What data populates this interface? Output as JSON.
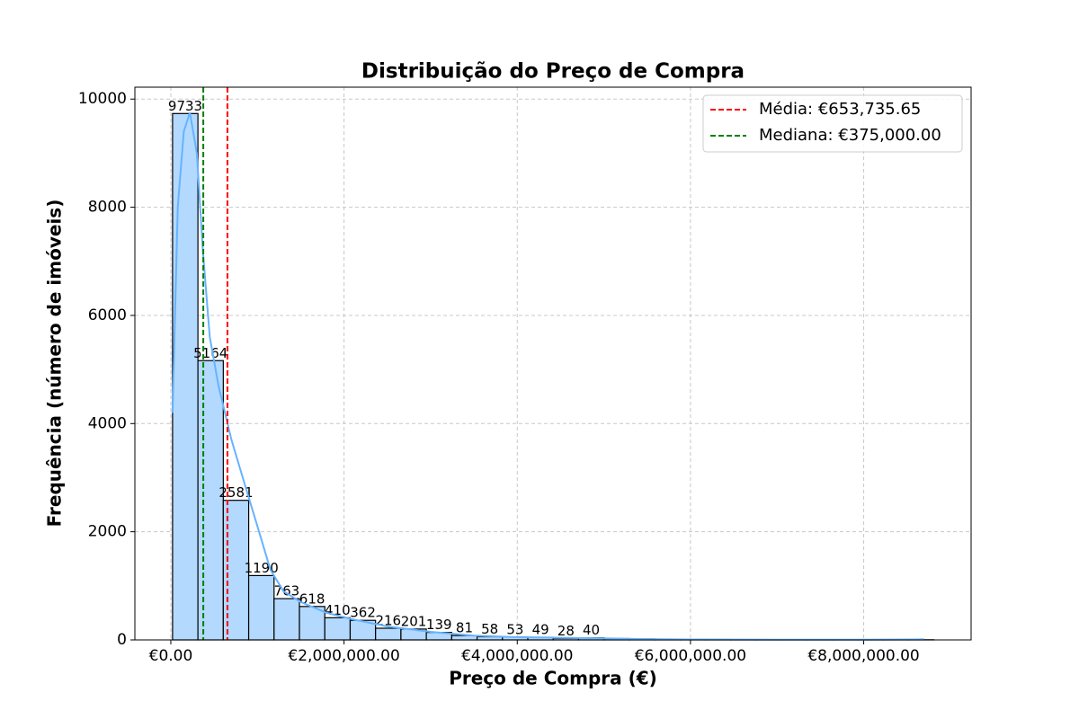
{
  "chart_data": {
    "type": "histogram",
    "title": "Distribuição do Preço de Compra",
    "xlabel": "Preço de Compra (€)",
    "ylabel": "Frequência (número de imóveis)",
    "bins": [
      20000,
      313000,
      606000,
      899000,
      1192000,
      1485000,
      1778000,
      2071000,
      2364000,
      2657000,
      2950000,
      3243000,
      3536000,
      3829000,
      4122000,
      4415000,
      4708000,
      5001000,
      5294000,
      5587000,
      5880000,
      6173000,
      6466000,
      6759000,
      7052000,
      7345000,
      7638000,
      7931000,
      8224000,
      8517000,
      8810000
    ],
    "values": [
      9733,
      5164,
      2581,
      1190,
      763,
      618,
      410,
      362,
      216,
      201,
      139,
      81,
      58,
      53,
      49,
      28,
      40,
      25,
      18,
      12,
      10,
      8,
      6,
      5,
      4,
      3,
      2,
      2,
      1,
      3
    ],
    "value_labels": [
      "9733",
      "5164",
      "2581",
      "1190",
      "763",
      "618",
      "410",
      "362",
      "216",
      "201",
      "139",
      "81",
      "58",
      "53",
      "49",
      "28",
      "40",
      null,
      null,
      null,
      null,
      null,
      null,
      null,
      null,
      null,
      null,
      null,
      null,
      null
    ],
    "color": "#b3d9ff",
    "edgecolor": "#000000",
    "kde": {
      "color": "#66b3ff",
      "x": [
        20000,
        80000,
        150000,
        220000,
        300000,
        370000,
        450000,
        550000,
        700000,
        850000,
        1000000,
        1150000,
        1300000,
        1500000,
        1800000,
        2100000,
        2500000,
        3000000,
        3500000,
        4000000,
        4500000,
        5000000,
        5500000,
        6000000,
        7000000,
        8000000,
        8700000
      ],
      "y": [
        4200,
        8000,
        9400,
        9750,
        9000,
        7200,
        5600,
        4700,
        3700,
        2900,
        2100,
        1300,
        900,
        700,
        500,
        380,
        250,
        150,
        80,
        50,
        40,
        30,
        15,
        8,
        5,
        5,
        10
      ]
    },
    "vlines": [
      {
        "value": 653735.65,
        "label": "Média: €653,735.65",
        "color": "#ff0000"
      },
      {
        "value": 375000,
        "label": "Mediana: €375,000.00",
        "color": "#008000"
      }
    ],
    "xlim": [
      -415000,
      9240000
    ],
    "ylim": [
      0,
      10220
    ],
    "xticks": [
      {
        "value": 0,
        "label": "€0.00"
      },
      {
        "value": 2000000,
        "label": "€2,000,000.00"
      },
      {
        "value": 4000000,
        "label": "€4,000,000.00"
      },
      {
        "value": 6000000,
        "label": "€6,000,000.00"
      },
      {
        "value": 8000000,
        "label": "€8,000,000.00"
      }
    ],
    "yticks": [
      0,
      2000,
      4000,
      6000,
      8000,
      10000
    ],
    "grid": true,
    "legend": "upper right"
  }
}
